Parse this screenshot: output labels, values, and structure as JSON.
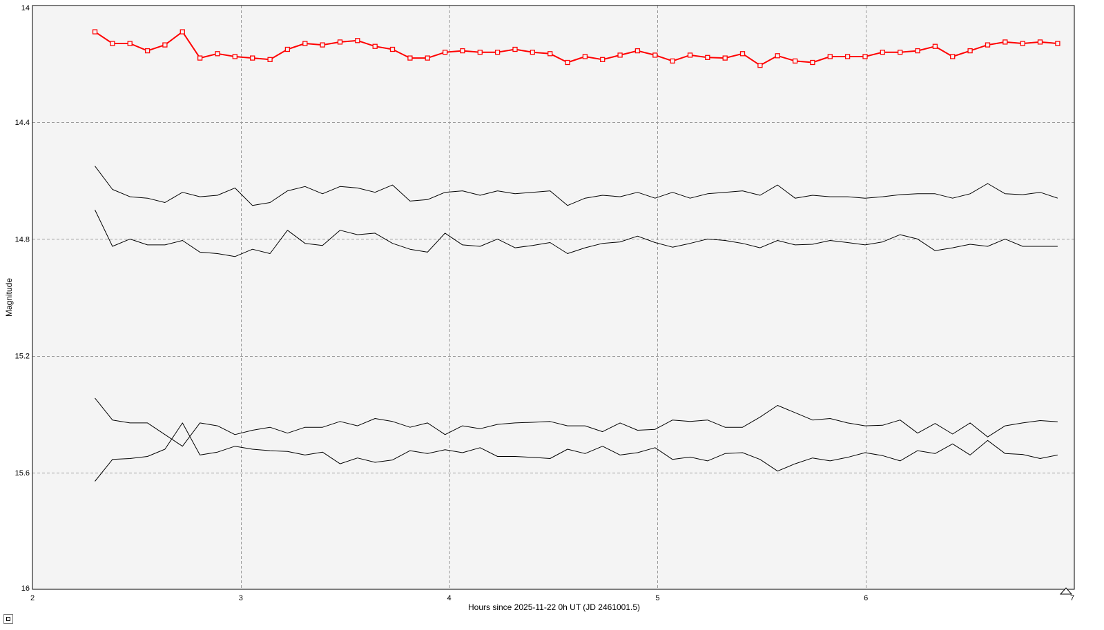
{
  "chart_data": {
    "type": "line",
    "xlabel": "Hours since 2025-11-22 0h UT (JD 2461001.5)",
    "ylabel": "Magnitude",
    "xlim": [
      2,
      7
    ],
    "ylim": [
      14,
      16
    ],
    "y_inverted": true,
    "x_ticks": [
      "2",
      "3",
      "4",
      "5",
      "6",
      "7"
    ],
    "y_ticks": [
      "14",
      "14.4",
      "14.8",
      "15.2",
      "15.6",
      "16"
    ],
    "grid": true,
    "x": [
      2.3,
      2.384,
      2.468,
      2.552,
      2.636,
      2.72,
      2.804,
      2.888,
      2.972,
      3.056,
      3.14,
      3.224,
      3.308,
      3.392,
      3.476,
      3.56,
      3.644,
      3.728,
      3.812,
      3.896,
      3.98,
      4.064,
      4.148,
      4.232,
      4.316,
      4.4,
      4.484,
      4.568,
      4.652,
      4.736,
      4.82,
      4.904,
      4.988,
      5.072,
      5.156,
      5.24,
      5.324,
      5.408,
      5.492,
      5.576,
      5.66,
      5.744,
      5.828,
      5.912,
      5.996,
      6.08,
      6.164,
      6.248,
      6.332,
      6.416,
      6.5,
      6.584,
      6.668,
      6.752,
      6.836,
      6.92
    ],
    "series": [
      {
        "color": "#ff0000",
        "markers": true,
        "values": [
          14.09,
          14.13,
          14.13,
          14.155,
          14.135,
          14.09,
          14.18,
          14.165,
          14.175,
          14.18,
          14.185,
          14.15,
          14.13,
          14.135,
          14.125,
          14.12,
          14.14,
          14.15,
          14.18,
          14.18,
          14.16,
          14.155,
          14.16,
          14.16,
          14.15,
          14.16,
          14.165,
          14.195,
          14.175,
          14.185,
          14.17,
          14.155,
          14.17,
          14.19,
          14.17,
          14.178,
          14.18,
          14.165,
          14.205,
          14.172,
          14.19,
          14.195,
          14.175,
          14.175,
          14.175,
          14.16,
          14.16,
          14.155,
          14.14,
          14.175,
          14.155,
          14.135,
          14.125,
          14.13,
          14.125,
          14.13
        ]
      },
      {
        "color": "#000000",
        "markers": false,
        "values": [
          14.55,
          14.63,
          14.655,
          14.66,
          14.675,
          14.64,
          14.655,
          14.65,
          14.625,
          14.685,
          14.675,
          14.635,
          14.62,
          14.645,
          14.62,
          14.625,
          14.64,
          14.615,
          14.67,
          14.665,
          14.64,
          14.635,
          14.65,
          14.635,
          14.645,
          14.64,
          14.635,
          14.685,
          14.66,
          14.65,
          14.655,
          14.64,
          14.66,
          14.64,
          14.66,
          14.645,
          14.64,
          14.635,
          14.65,
          14.615,
          14.66,
          14.65,
          14.655,
          14.655,
          14.66,
          14.655,
          14.648,
          14.645,
          14.645,
          14.66,
          14.645,
          14.61,
          14.645,
          14.648,
          14.64,
          14.66
        ]
      },
      {
        "color": "#000000",
        "markers": false,
        "values": [
          14.7,
          14.825,
          14.8,
          14.82,
          14.82,
          14.805,
          14.845,
          14.85,
          14.86,
          14.835,
          14.85,
          14.77,
          14.815,
          14.822,
          14.77,
          14.785,
          14.78,
          14.815,
          14.835,
          14.845,
          14.78,
          14.82,
          14.825,
          14.8,
          14.83,
          14.822,
          14.812,
          14.85,
          14.83,
          14.815,
          14.81,
          14.79,
          14.812,
          14.828,
          14.815,
          14.8,
          14.805,
          14.815,
          14.83,
          14.805,
          14.82,
          14.818,
          14.805,
          14.812,
          14.82,
          14.81,
          14.785,
          14.8,
          14.84,
          14.83,
          14.818,
          14.825,
          14.8,
          14.825,
          14.825,
          14.825
        ]
      },
      {
        "color": "#000000",
        "markers": false,
        "values": [
          15.345,
          15.42,
          15.43,
          15.43,
          15.47,
          15.51,
          15.43,
          15.44,
          15.47,
          15.455,
          15.445,
          15.465,
          15.445,
          15.445,
          15.425,
          15.44,
          15.415,
          15.425,
          15.445,
          15.43,
          15.47,
          15.44,
          15.45,
          15.435,
          15.43,
          15.428,
          15.425,
          15.44,
          15.44,
          15.46,
          15.43,
          15.455,
          15.452,
          15.42,
          15.425,
          15.42,
          15.445,
          15.445,
          15.41,
          15.37,
          15.395,
          15.42,
          15.415,
          15.43,
          15.44,
          15.438,
          15.42,
          15.465,
          15.432,
          15.468,
          15.43,
          15.478,
          15.44,
          15.43,
          15.422,
          15.426
        ]
      },
      {
        "color": "#000000",
        "markers": false,
        "values": [
          15.63,
          15.555,
          15.552,
          15.545,
          15.52,
          15.43,
          15.54,
          15.53,
          15.51,
          15.52,
          15.525,
          15.528,
          15.54,
          15.53,
          15.57,
          15.55,
          15.565,
          15.557,
          15.525,
          15.535,
          15.522,
          15.532,
          15.515,
          15.545,
          15.545,
          15.548,
          15.552,
          15.52,
          15.535,
          15.51,
          15.54,
          15.532,
          15.515,
          15.555,
          15.547,
          15.56,
          15.535,
          15.532,
          15.555,
          15.595,
          15.57,
          15.55,
          15.56,
          15.548,
          15.532,
          15.542,
          15.56,
          15.525,
          15.535,
          15.502,
          15.54,
          15.49,
          15.535,
          15.538,
          15.552,
          15.54
        ]
      }
    ]
  },
  "colors": {
    "plot_background": "#f4f4f4",
    "grid": "#9a9a9a",
    "highlight_series": "#ff0000"
  }
}
